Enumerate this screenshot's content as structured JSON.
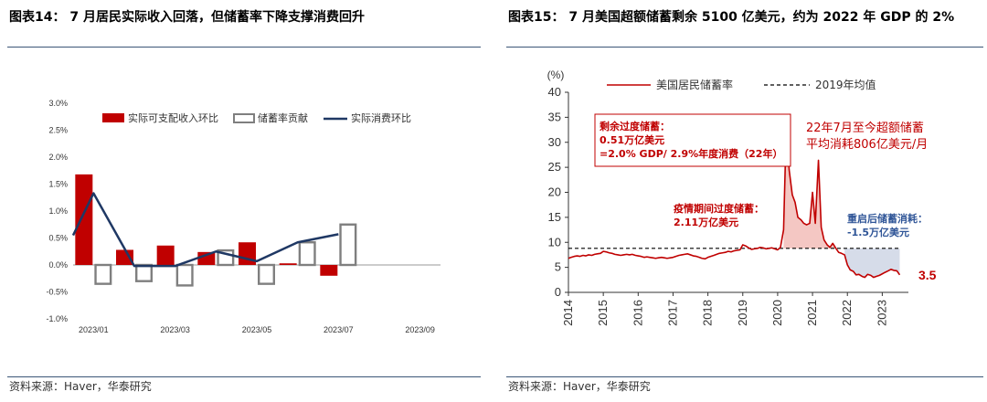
{
  "left": {
    "title": "图表14：  7 月居民实际收入回落，但储蓄率下降支撑消费回升",
    "source": "资料来源：Haver，华泰研究",
    "colors": {
      "income": "#c00000",
      "saving": "#7f7f7f",
      "consumption": "#1f3864"
    }
  },
  "right": {
    "title": "图表15：  7 月美国超额储蓄剩余 5100 亿美元，约为 2022 年 GDP 的 2%",
    "source": "资料来源：Haver，华泰研究",
    "colors": {
      "saving_rate": "#c00000",
      "avg": "#000000",
      "fill_excess": "#f4c7c3",
      "fill_depletion": "#d6dce9"
    }
  },
  "chart_data": [
    {
      "type": "bar",
      "categories": [
        "2023/01",
        "2023/02",
        "2023/03",
        "2023/04",
        "2023/05",
        "2023/06",
        "2023/07"
      ],
      "x_tick_labels": [
        "2023/01",
        "2023/03",
        "2023/05",
        "2023/07",
        "2023/09"
      ],
      "series": [
        {
          "name": "实际可支配收入环比",
          "kind": "bar-filled",
          "values": [
            1.68,
            0.28,
            0.36,
            0.24,
            0.42,
            0.03,
            -0.2
          ]
        },
        {
          "name": "储蓄率贡献",
          "kind": "bar-outline",
          "values": [
            -0.35,
            -0.3,
            -0.38,
            0.27,
            -0.35,
            0.42,
            0.75
          ]
        },
        {
          "name": "实际消费环比",
          "kind": "line",
          "values": [
            1.33,
            -0.02,
            -0.02,
            0.25,
            0.07,
            0.42,
            0.57
          ]
        }
      ],
      "line_start_value": 0.55,
      "ylim": [
        -1.0,
        3.0
      ],
      "y_ticks": [
        "3.0%",
        "2.5%",
        "2.0%",
        "1.5%",
        "1.0%",
        "0.5%",
        "0.0%",
        "-0.5%",
        "-1.0%"
      ],
      "legend": "top"
    },
    {
      "type": "line",
      "ylabel": "(%)",
      "x_ticks": [
        "2014",
        "2015",
        "2016",
        "2017",
        "2018",
        "2019",
        "2020",
        "2021",
        "2022",
        "2023"
      ],
      "y_ticks": [
        0,
        5,
        10,
        15,
        20,
        25,
        30,
        35,
        40
      ],
      "ylim": [
        0,
        40
      ],
      "xlim": [
        2014.0,
        2023.75
      ],
      "series": [
        {
          "name": "美国居民储蓄率",
          "points": [
            [
              2014.0,
              6.8
            ],
            [
              2014.08,
              7.0
            ],
            [
              2014.17,
              7.2
            ],
            [
              2014.25,
              7.3
            ],
            [
              2014.33,
              7.2
            ],
            [
              2014.42,
              7.4
            ],
            [
              2014.5,
              7.3
            ],
            [
              2014.58,
              7.5
            ],
            [
              2014.67,
              7.4
            ],
            [
              2014.75,
              7.6
            ],
            [
              2014.83,
              7.7
            ],
            [
              2014.92,
              7.8
            ],
            [
              2015.0,
              8.2
            ],
            [
              2015.08,
              8.1
            ],
            [
              2015.17,
              7.9
            ],
            [
              2015.25,
              7.8
            ],
            [
              2015.33,
              7.6
            ],
            [
              2015.42,
              7.5
            ],
            [
              2015.5,
              7.4
            ],
            [
              2015.58,
              7.5
            ],
            [
              2015.67,
              7.6
            ],
            [
              2015.75,
              7.5
            ],
            [
              2015.83,
              7.6
            ],
            [
              2015.92,
              7.4
            ],
            [
              2016.0,
              7.3
            ],
            [
              2016.08,
              7.2
            ],
            [
              2016.17,
              7.0
            ],
            [
              2016.25,
              7.1
            ],
            [
              2016.33,
              7.0
            ],
            [
              2016.42,
              6.9
            ],
            [
              2016.5,
              6.8
            ],
            [
              2016.58,
              6.9
            ],
            [
              2016.67,
              7.0
            ],
            [
              2016.75,
              6.9
            ],
            [
              2016.83,
              6.8
            ],
            [
              2016.92,
              6.9
            ],
            [
              2017.0,
              7.0
            ],
            [
              2017.08,
              7.2
            ],
            [
              2017.17,
              7.4
            ],
            [
              2017.25,
              7.5
            ],
            [
              2017.33,
              7.6
            ],
            [
              2017.42,
              7.7
            ],
            [
              2017.5,
              7.5
            ],
            [
              2017.58,
              7.3
            ],
            [
              2017.67,
              7.2
            ],
            [
              2017.75,
              7.0
            ],
            [
              2017.83,
              6.8
            ],
            [
              2017.92,
              6.7
            ],
            [
              2018.0,
              7.0
            ],
            [
              2018.08,
              7.2
            ],
            [
              2018.17,
              7.4
            ],
            [
              2018.25,
              7.6
            ],
            [
              2018.33,
              7.8
            ],
            [
              2018.42,
              7.9
            ],
            [
              2018.5,
              8.0
            ],
            [
              2018.58,
              8.2
            ],
            [
              2018.67,
              8.1
            ],
            [
              2018.75,
              8.3
            ],
            [
              2018.83,
              8.4
            ],
            [
              2018.92,
              8.5
            ],
            [
              2019.0,
              9.5
            ],
            [
              2019.08,
              9.3
            ],
            [
              2019.17,
              8.9
            ],
            [
              2019.25,
              8.6
            ],
            [
              2019.33,
              8.7
            ],
            [
              2019.42,
              8.8
            ],
            [
              2019.5,
              9.0
            ],
            [
              2019.58,
              8.9
            ],
            [
              2019.67,
              8.7
            ],
            [
              2019.75,
              8.8
            ],
            [
              2019.83,
              8.9
            ],
            [
              2019.92,
              8.7
            ],
            [
              2020.0,
              8.5
            ],
            [
              2020.08,
              9.0
            ],
            [
              2020.17,
              12.5
            ],
            [
              2020.25,
              33.8
            ],
            [
              2020.33,
              24.5
            ],
            [
              2020.42,
              19.5
            ],
            [
              2020.5,
              18.0
            ],
            [
              2020.58,
              15.0
            ],
            [
              2020.67,
              14.5
            ],
            [
              2020.75,
              13.8
            ],
            [
              2020.83,
              13.5
            ],
            [
              2020.92,
              13.8
            ],
            [
              2021.0,
              20.0
            ],
            [
              2021.08,
              13.8
            ],
            [
              2021.17,
              26.4
            ],
            [
              2021.25,
              13.0
            ],
            [
              2021.33,
              10.5
            ],
            [
              2021.42,
              9.5
            ],
            [
              2021.5,
              9.0
            ],
            [
              2021.58,
              9.8
            ],
            [
              2021.67,
              8.8
            ],
            [
              2021.75,
              8.0
            ],
            [
              2021.83,
              7.8
            ],
            [
              2021.92,
              7.5
            ],
            [
              2022.0,
              5.5
            ],
            [
              2022.08,
              4.5
            ],
            [
              2022.17,
              4.2
            ],
            [
              2022.25,
              3.5
            ],
            [
              2022.33,
              3.6
            ],
            [
              2022.42,
              3.2
            ],
            [
              2022.5,
              3.0
            ],
            [
              2022.58,
              3.6
            ],
            [
              2022.67,
              3.4
            ],
            [
              2022.75,
              3.0
            ],
            [
              2022.83,
              3.2
            ],
            [
              2022.92,
              3.4
            ],
            [
              2023.0,
              3.7
            ],
            [
              2023.08,
              4.0
            ],
            [
              2023.17,
              4.3
            ],
            [
              2023.25,
              4.6
            ],
            [
              2023.33,
              4.4
            ],
            [
              2023.42,
              4.3
            ],
            [
              2023.5,
              3.5
            ]
          ]
        },
        {
          "name": "2019年均值",
          "kind": "hline",
          "value": 8.8
        }
      ],
      "shaded_regions": [
        {
          "kind": "excess",
          "from": 2020.17,
          "to": 2021.83
        },
        {
          "kind": "depletion",
          "from": 2021.92,
          "to": 2023.5
        }
      ],
      "annotations": {
        "box_lines": [
          "剩余过度储蓄：",
          "0.51万亿美元",
          "=2.0% GDP/ 2.9%年度消费（22年）"
        ],
        "note1_lines": [
          "22年7月至今超额储蓄",
          "平均消耗806亿美元/月"
        ],
        "note2_lines": [
          "疫情期间过度储蓄：",
          "2.11万亿美元"
        ],
        "note3_lines": [
          "重启后储蓄消耗：",
          "-1.5万亿美元"
        ],
        "last_value": "3.5"
      },
      "legend": "top"
    }
  ]
}
